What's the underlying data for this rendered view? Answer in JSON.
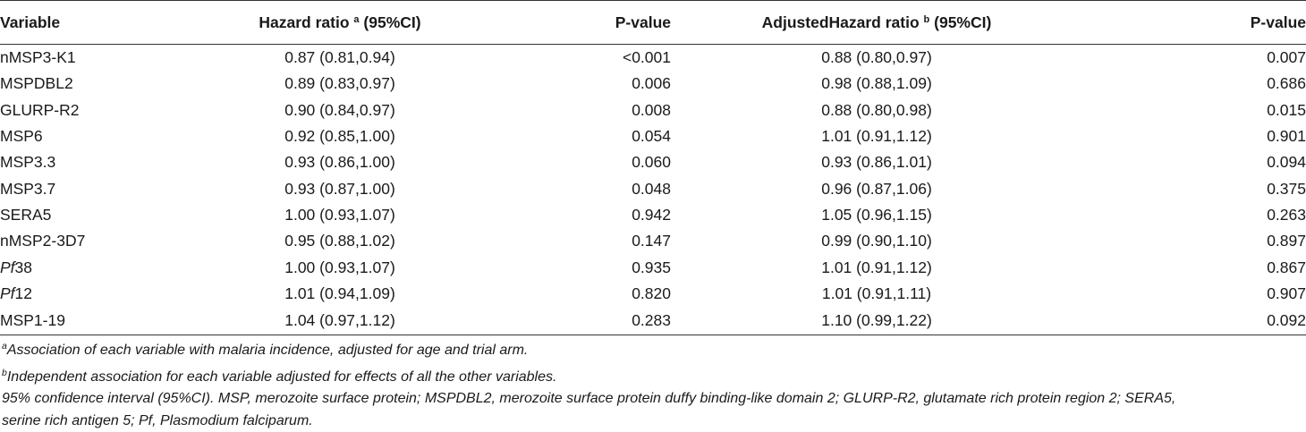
{
  "table": {
    "headers": {
      "variable": "Variable",
      "hr": "Hazard ratio",
      "hr_sup": "a",
      "hr_ci": "(95%CI)",
      "p1": "P-value",
      "ahr": "AdjustedHazard ratio",
      "ahr_sup": "b",
      "ahr_ci": "(95%CI)",
      "p2": "P-value"
    },
    "rows": [
      {
        "variable": "nMSP3-K1",
        "hr": "0.87 (0.81,0.94)",
        "p1": "<0.001",
        "ahr": "0.88 (0.80,0.97)",
        "p2": "0.007"
      },
      {
        "variable": "MSPDBL2",
        "hr": "0.89 (0.83,0.97)",
        "p1": "0.006",
        "ahr": "0.98 (0.88,1.09)",
        "p2": "0.686"
      },
      {
        "variable": "GLURP-R2",
        "hr": "0.90 (0.84,0.97)",
        "p1": "0.008",
        "ahr": "0.88 (0.80,0.98)",
        "p2": "0.015"
      },
      {
        "variable": "MSP6",
        "hr": "0.92 (0.85,1.00)",
        "p1": "0.054",
        "ahr": "1.01 (0.91,1.12)",
        "p2": "0.901"
      },
      {
        "variable": "MSP3.3",
        "hr": "0.93 (0.86,1.00)",
        "p1": "0.060",
        "ahr": "0.93 (0.86,1.01)",
        "p2": "0.094"
      },
      {
        "variable": "MSP3.7",
        "hr": "0.93 (0.87,1.00)",
        "p1": "0.048",
        "ahr": "0.96 (0.87,1.06)",
        "p2": "0.375"
      },
      {
        "variable": "SERA5",
        "hr": "1.00 (0.93,1.07)",
        "p1": "0.942",
        "ahr": "1.05 (0.96,1.15)",
        "p2": "0.263"
      },
      {
        "variable": "nMSP2-3D7",
        "hr": "0.95 (0.88,1.02)",
        "p1": "0.147",
        "ahr": "0.99 (0.90,1.10)",
        "p2": "0.897"
      },
      {
        "variable_italic": "Pf",
        "variable_rest": "38",
        "hr": "1.00 (0.93,1.07)",
        "p1": "0.935",
        "ahr": "1.01 (0.91,1.12)",
        "p2": "0.867"
      },
      {
        "variable_italic": "Pf",
        "variable_rest": "12",
        "hr": "1.01 (0.94,1.09)",
        "p1": "0.820",
        "ahr": "1.01 (0.91,1.11)",
        "p2": "0.907"
      },
      {
        "variable": "MSP1-19",
        "hr": "1.04 (0.97,1.12)",
        "p1": "0.283",
        "ahr": "1.10 (0.99,1.22)",
        "p2": "0.092"
      }
    ]
  },
  "footnotes": {
    "a_mark": "a",
    "a_text": "Association of each variable with malaria incidence, adjusted for age and trial arm.",
    "b_mark": "b",
    "b_text": "Independent association for each variable adjusted for effects of all the other variables.",
    "abbrev_line1": "95% confidence interval (95%CI). MSP, merozoite surface protein; MSPDBL2, merozoite surface protein duffy binding-like domain 2; GLURP-R2, glutamate rich protein region 2; SERA5,",
    "abbrev_line2": "serine rich antigen 5; Pf, Plasmodium falciparum."
  }
}
